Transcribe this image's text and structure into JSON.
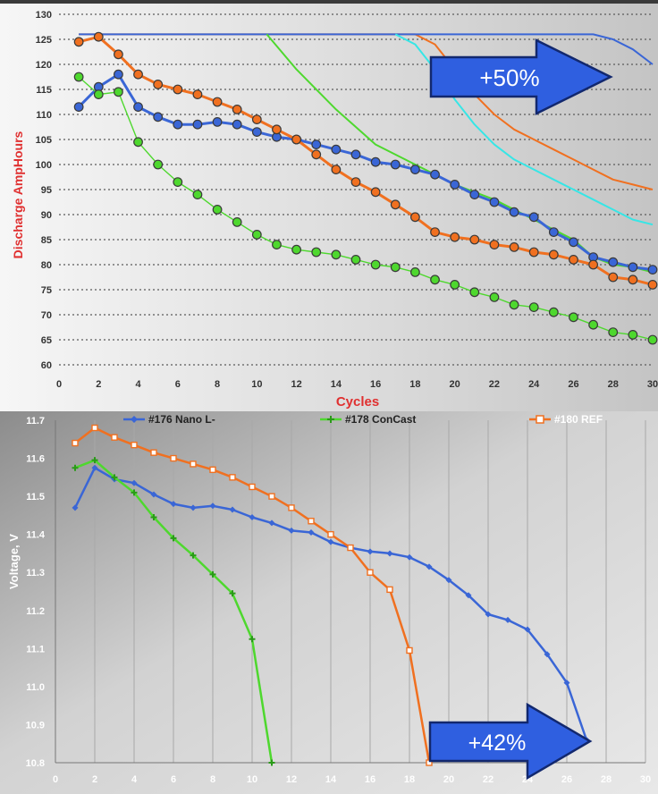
{
  "colors": {
    "blue": "#3a66d6",
    "orange": "#f07020",
    "green": "#4ed82e",
    "cyan": "#36e6e6",
    "axis_label_red": "#e03030",
    "arrow_fill": "#2f5fe0",
    "arrow_stroke": "#12286e"
  },
  "chart_data": [
    {
      "type": "line",
      "xlabel": "Cycles",
      "ylabel": "Discharge AmpHours",
      "xlim": [
        0,
        30
      ],
      "ylim": [
        60,
        130
      ],
      "xticks": [
        "0",
        "2",
        "4",
        "6",
        "8",
        "10",
        "12",
        "14",
        "16",
        "18",
        "20",
        "22",
        "24",
        "26",
        "28",
        "30"
      ],
      "yticks": [
        "60",
        "65",
        "70",
        "75",
        "80",
        "85",
        "90",
        "95",
        "100",
        "105",
        "110",
        "115",
        "120",
        "125",
        "130"
      ],
      "grid": "horizontal dotted",
      "annotation": "+50%",
      "series": [
        {
          "color": "blue",
          "marker": "circle",
          "x": [
            1,
            2,
            3,
            4,
            5,
            6,
            7,
            8,
            9,
            10,
            11,
            12,
            13,
            14,
            15,
            16,
            17,
            18,
            19,
            20,
            21,
            22,
            23,
            24,
            25,
            26,
            27,
            28,
            29,
            30
          ],
          "y": [
            111.5,
            115.5,
            118,
            111.5,
            109.5,
            108,
            108,
            108.5,
            108,
            106.5,
            105.5,
            105,
            104,
            103,
            102,
            100.5,
            100,
            99,
            98,
            96,
            94,
            92.5,
            90.5,
            89.5,
            86.5,
            84.5,
            81.5,
            80.5,
            79.5,
            79
          ]
        },
        {
          "color": "orange",
          "marker": "circle",
          "x": [
            1,
            2,
            3,
            4,
            5,
            6,
            7,
            8,
            9,
            10,
            11,
            12,
            13,
            14,
            15,
            16,
            17,
            18,
            19,
            20,
            21,
            22,
            23,
            24,
            25,
            26,
            27,
            28,
            29,
            30
          ],
          "y": [
            124.5,
            125.5,
            122,
            118,
            116,
            115,
            114,
            112.5,
            111,
            109,
            107,
            105,
            102,
            99,
            96.5,
            94.5,
            92,
            89.5,
            86.5,
            85.5,
            85,
            84,
            83.5,
            82.5,
            82,
            81,
            80,
            77.5,
            77,
            76
          ]
        },
        {
          "color": "green",
          "marker": "circle",
          "x": [
            1,
            2,
            3,
            4,
            5,
            6,
            7,
            8,
            9,
            10,
            11,
            12,
            13,
            14,
            15,
            16,
            17,
            18,
            19,
            20,
            21,
            22,
            23,
            24,
            25,
            26,
            27,
            28,
            29,
            30
          ],
          "y": [
            117.5,
            114,
            114.5,
            104.5,
            100,
            96.5,
            94,
            91,
            88.5,
            86,
            84,
            83,
            82.5,
            82,
            81,
            80,
            79.5,
            78.5,
            77,
            76,
            74.5,
            73.5,
            72,
            71.5,
            70.5,
            69.5,
            68,
            66.5,
            66,
            65
          ]
        },
        {
          "color": "orange",
          "marker": "none",
          "x": [
            1,
            2,
            3,
            10,
            16,
            18,
            19,
            20,
            21,
            22,
            23,
            24,
            25,
            26,
            27,
            28,
            29,
            30
          ],
          "y": [
            126,
            126,
            126,
            126,
            126,
            126,
            124,
            119,
            114,
            110,
            107,
            105,
            103,
            101,
            99,
            97,
            96,
            95
          ]
        },
        {
          "color": "blue",
          "marker": "none",
          "x": [
            1,
            5,
            10,
            15,
            20,
            25,
            27,
            28,
            29,
            30
          ],
          "y": [
            126,
            126,
            126,
            126,
            126,
            126,
            126,
            125,
            123,
            120
          ]
        },
        {
          "color": "green",
          "marker": "none",
          "x": [
            10.5,
            12,
            14,
            16,
            18,
            20,
            22,
            24,
            26,
            27,
            28,
            29,
            30
          ],
          "y": [
            126,
            119,
            111,
            104,
            100,
            96,
            93,
            89,
            85,
            81.5,
            80,
            79.5,
            78.5
          ]
        },
        {
          "color": "cyan",
          "marker": "none",
          "x": [
            17,
            18,
            19,
            20,
            21,
            22,
            23,
            24,
            25,
            26,
            27,
            28,
            29,
            30
          ],
          "y": [
            126,
            124,
            119,
            113,
            108,
            104,
            101,
            99,
            97,
            95,
            93,
            91,
            89,
            88
          ]
        }
      ]
    },
    {
      "type": "line",
      "xlabel": "",
      "ylabel": "Voltage, V",
      "xlim": [
        0,
        30
      ],
      "ylim": [
        10.8,
        11.7
      ],
      "xticks": [
        "0",
        "2",
        "4",
        "6",
        "8",
        "10",
        "12",
        "14",
        "16",
        "18",
        "20",
        "22",
        "24",
        "26",
        "28",
        "30"
      ],
      "yticks": [
        "10.8",
        "10.9",
        "11.0",
        "11.1",
        "11.2",
        "11.3",
        "11.4",
        "11.5",
        "11.6",
        "11.7"
      ],
      "grid": "vertical",
      "legend_position": "top",
      "annotation": "+42%",
      "series": [
        {
          "name": "#176 Nano L-",
          "color": "blue",
          "marker": "diamond",
          "x": [
            1,
            2,
            3,
            4,
            5,
            6,
            7,
            8,
            9,
            10,
            11,
            12,
            13,
            14,
            15,
            16,
            17,
            18,
            19,
            20,
            21,
            22,
            23,
            24,
            25,
            26,
            27
          ],
          "y": [
            11.47,
            11.575,
            11.545,
            11.535,
            11.505,
            11.48,
            11.47,
            11.475,
            11.465,
            11.445,
            11.43,
            11.41,
            11.405,
            11.38,
            11.365,
            11.355,
            11.35,
            11.34,
            11.315,
            11.28,
            11.24,
            11.19,
            11.175,
            11.15,
            11.085,
            11.01,
            10.86
          ]
        },
        {
          "name": "#178 ConCast",
          "color": "green",
          "marker": "plus",
          "x": [
            1,
            2,
            3,
            4,
            5,
            6,
            7,
            8,
            9,
            10,
            11
          ],
          "y": [
            11.575,
            11.595,
            11.55,
            11.51,
            11.445,
            11.39,
            11.345,
            11.295,
            11.245,
            11.125,
            10.8
          ]
        },
        {
          "name": "#180 REF",
          "color": "orange",
          "marker": "square",
          "x": [
            1,
            2,
            3,
            4,
            5,
            6,
            7,
            8,
            9,
            10,
            11,
            12,
            13,
            14,
            15,
            16,
            17,
            18,
            19
          ],
          "y": [
            11.64,
            11.68,
            11.655,
            11.635,
            11.615,
            11.6,
            11.585,
            11.57,
            11.55,
            11.525,
            11.5,
            11.47,
            11.435,
            11.4,
            11.365,
            11.3,
            11.255,
            11.095,
            10.8
          ]
        }
      ]
    }
  ]
}
